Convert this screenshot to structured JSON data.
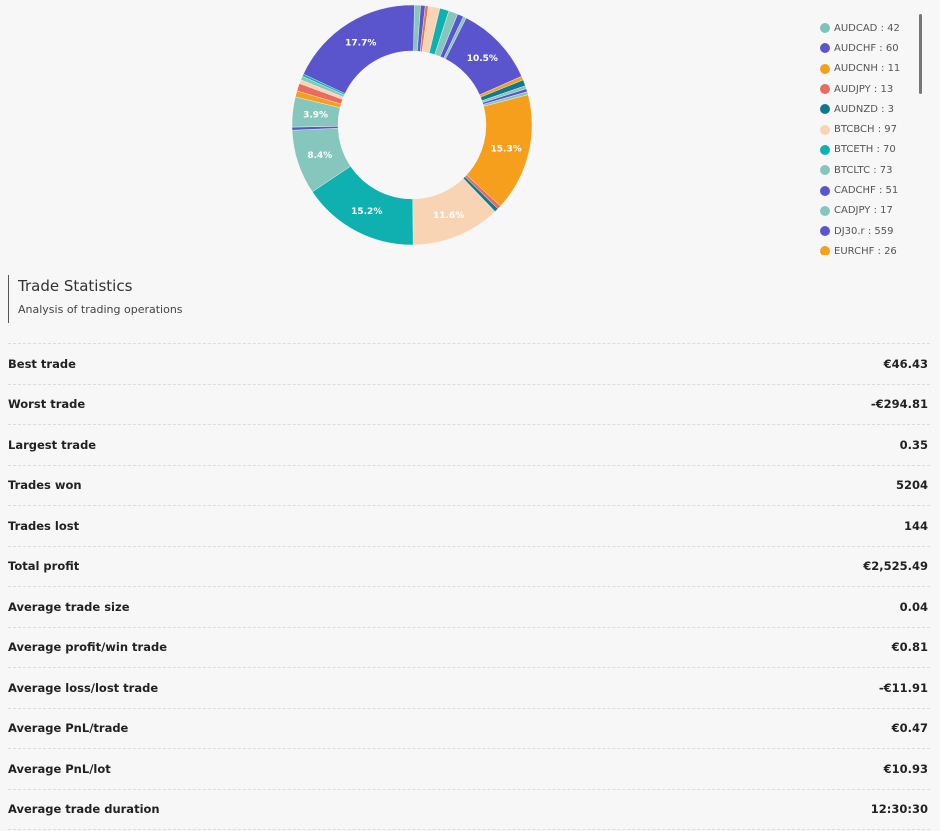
{
  "chart_data": {
    "type": "pie",
    "subtype": "donut",
    "title": "",
    "slices": [
      {
        "label": "AUDCAD",
        "value": 42,
        "color": "#7cc4b8"
      },
      {
        "label": "AUDCHF",
        "value": 60,
        "color": "#5a55cc"
      },
      {
        "label": "AUDCNH",
        "value": 11,
        "color": "#f59f1d"
      },
      {
        "label": "AUDJPY",
        "value": 13,
        "color": "#ec6b5e"
      },
      {
        "label": "AUDNZD",
        "value": 3,
        "color": "#0f7a8f"
      },
      {
        "label": "BTCBCH",
        "value": 97,
        "color": "#f8d4b4"
      },
      {
        "label": "BTCETH",
        "value": 70,
        "color": "#0fb0b0"
      },
      {
        "label": "BTCLTC",
        "value": 73,
        "color": "#86c7bd"
      },
      {
        "label": "CADCHF",
        "value": 51,
        "color": "#5a55cc"
      },
      {
        "label": "CADJPY",
        "value": 17,
        "color": "#86c7bd"
      },
      {
        "label": "DJ30.r",
        "value": 559,
        "color": "#5a55cc"
      },
      {
        "label": "EURCHF",
        "value": 26,
        "color": "#f59f1d"
      }
    ],
    "visible_percent_labels": [
      "17.7%",
      "10.5%",
      "15.3%",
      "11.6%",
      "15.2%",
      "8.4%",
      "3.9%"
    ],
    "approx_segments": [
      {
        "pct": 0.8,
        "color": "#86c7bd"
      },
      {
        "pct": 0.6,
        "color": "#5a55cc"
      },
      {
        "pct": 0.4,
        "color": "#e07a4a"
      },
      {
        "pct": 1.5,
        "color": "#f8d4b4"
      },
      {
        "pct": 1.2,
        "color": "#0fb0b0"
      },
      {
        "pct": 1.2,
        "color": "#86c7bd"
      },
      {
        "pct": 0.8,
        "color": "#5a55cc"
      },
      {
        "pct": 0.4,
        "color": "#86c7bd"
      },
      {
        "pct": 10.5,
        "color": "#5a55cc",
        "label": "10.5%"
      },
      {
        "pct": 0.5,
        "color": "#f59f1d"
      },
      {
        "pct": 0.8,
        "color": "#0f7a8f"
      },
      {
        "pct": 0.4,
        "color": "#86c7bd"
      },
      {
        "pct": 0.4,
        "color": "#5a55cc"
      },
      {
        "pct": 0.4,
        "color": "#86c7bd"
      },
      {
        "pct": 15.3,
        "color": "#f59f1d",
        "label": "15.3%"
      },
      {
        "pct": 0.5,
        "color": "#ec6b5e"
      },
      {
        "pct": 0.5,
        "color": "#0f7a8f"
      },
      {
        "pct": 11.6,
        "color": "#f8d4b4",
        "label": "11.6%"
      },
      {
        "pct": 15.2,
        "color": "#0fb0b0",
        "label": "15.2%"
      },
      {
        "pct": 8.4,
        "color": "#86c7bd",
        "label": "8.4%"
      },
      {
        "pct": 0.4,
        "color": "#5a55cc"
      },
      {
        "pct": 3.9,
        "color": "#86c7bd",
        "label": "3.9%"
      },
      {
        "pct": 0.8,
        "color": "#f59f1d"
      },
      {
        "pct": 1.0,
        "color": "#ec6b5e"
      },
      {
        "pct": 0.5,
        "color": "#f8d4b4"
      },
      {
        "pct": 0.5,
        "color": "#86c7bd"
      },
      {
        "pct": 0.3,
        "color": "#0fb0b0"
      },
      {
        "pct": 17.7,
        "color": "#5a55cc",
        "label": "17.7%"
      }
    ],
    "legend_position": "right"
  },
  "legend": {
    "items": [
      {
        "text": "AUDCAD : 42",
        "color": "#7cc4b8"
      },
      {
        "text": "AUDCHF : 60",
        "color": "#5a55cc"
      },
      {
        "text": "AUDCNH : 11",
        "color": "#f59f1d"
      },
      {
        "text": "AUDJPY : 13",
        "color": "#ec6b5e"
      },
      {
        "text": "AUDNZD : 3",
        "color": "#0f7a8f"
      },
      {
        "text": "BTCBCH : 97",
        "color": "#f8d4b4"
      },
      {
        "text": "BTCETH : 70",
        "color": "#0fb0b0"
      },
      {
        "text": "BTCLTC : 73",
        "color": "#86c7bd"
      },
      {
        "text": "CADCHF : 51",
        "color": "#5a55cc"
      },
      {
        "text": "CADJPY : 17",
        "color": "#86c7bd"
      },
      {
        "text": "DJ30.r : 559",
        "color": "#5a55cc"
      },
      {
        "text": "EURCHF : 26",
        "color": "#f59f1d"
      }
    ]
  },
  "section": {
    "title": "Trade Statistics",
    "subtitle": "Analysis of trading operations"
  },
  "stats": [
    {
      "label": "Best trade",
      "value": "€46.43"
    },
    {
      "label": "Worst trade",
      "value": "-€294.81"
    },
    {
      "label": "Largest trade",
      "value": "0.35"
    },
    {
      "label": "Trades won",
      "value": "5204"
    },
    {
      "label": "Trades lost",
      "value": "144"
    },
    {
      "label": "Total profit",
      "value": "€2,525.49"
    },
    {
      "label": "Average trade size",
      "value": "0.04"
    },
    {
      "label": "Average profit/win trade",
      "value": "€0.81"
    },
    {
      "label": "Average loss/lost trade",
      "value": "-€11.91"
    },
    {
      "label": "Average PnL/trade",
      "value": "€0.47"
    },
    {
      "label": "Average PnL/lot",
      "value": "€10.93"
    },
    {
      "label": "Average trade duration",
      "value": "12:30:30"
    }
  ]
}
